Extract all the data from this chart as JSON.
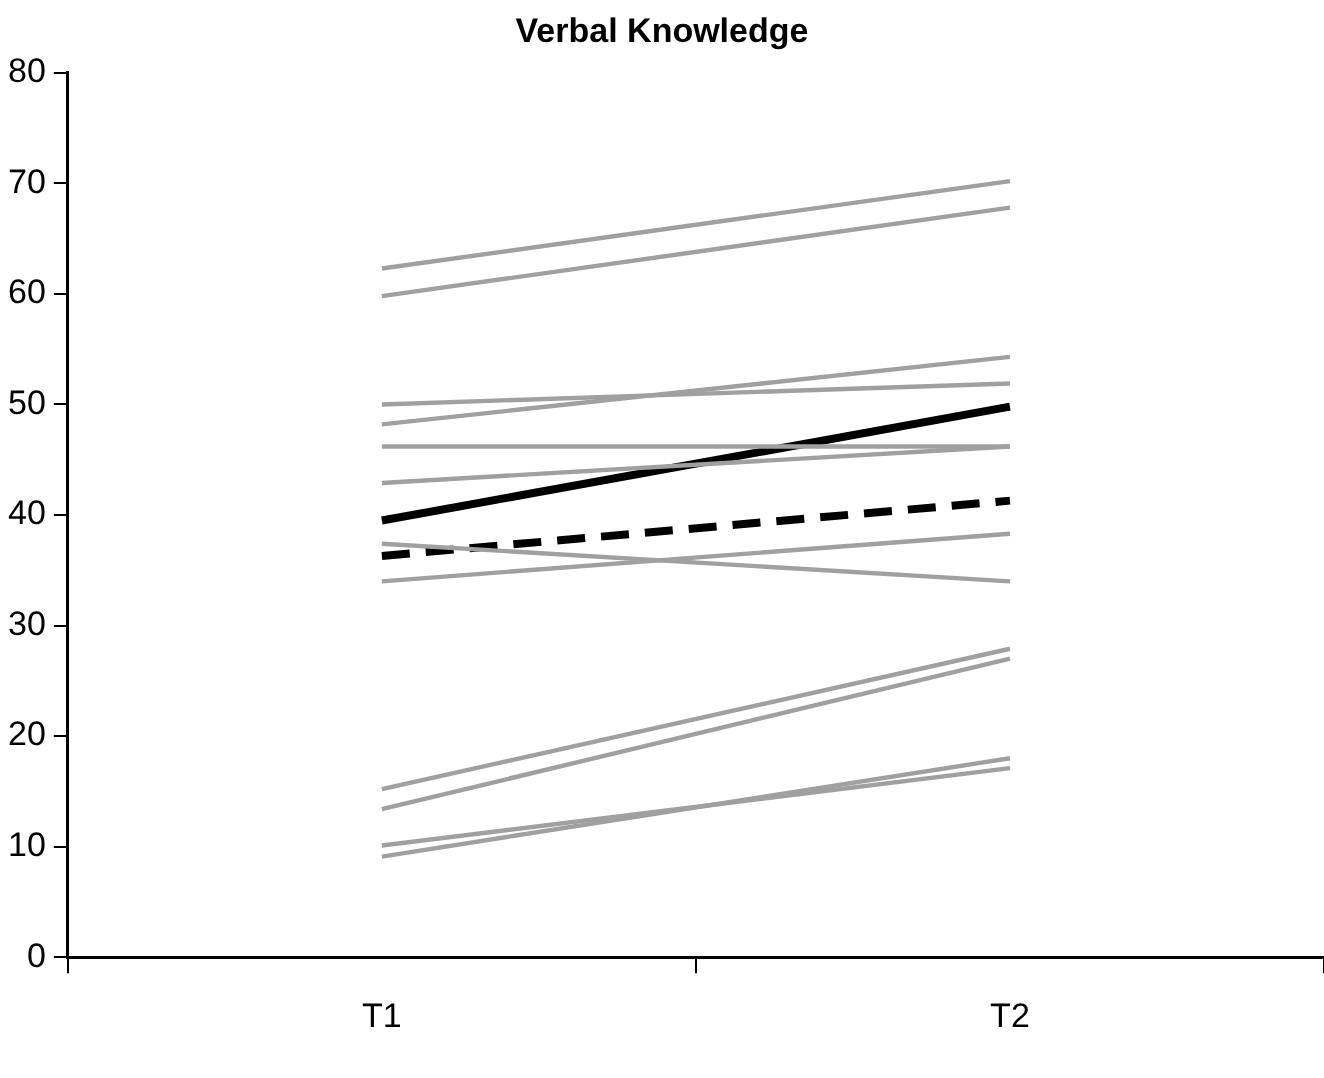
{
  "chart_data": {
    "type": "line",
    "title": "Verbal Knowledge",
    "categories": [
      "T1",
      "T2"
    ],
    "ylim": [
      0,
      80
    ],
    "yticks": [
      0,
      10,
      20,
      30,
      40,
      50,
      60,
      70,
      80
    ],
    "grid": false,
    "legend": false,
    "marker": "none",
    "series": [
      {
        "color": "#a0a0a0",
        "values": [
          62.3,
          70.2
        ]
      },
      {
        "color": "#a0a0a0",
        "values": [
          59.8,
          67.8
        ]
      },
      {
        "color": "#a0a0a0",
        "values": [
          50.0,
          51.9
        ]
      },
      {
        "color": "#a0a0a0",
        "values": [
          48.2,
          54.3
        ]
      },
      {
        "color": "#a0a0a0",
        "values": [
          46.2,
          46.2
        ]
      },
      {
        "color": "#a0a0a0",
        "values": [
          42.9,
          46.2
        ]
      },
      {
        "color": "#a0a0a0",
        "values": [
          37.4,
          34.0
        ]
      },
      {
        "color": "#a0a0a0",
        "values": [
          34.0,
          38.3
        ]
      },
      {
        "color": "#a0a0a0",
        "values": [
          15.2,
          27.9
        ]
      },
      {
        "color": "#a0a0a0",
        "values": [
          13.4,
          27.0
        ]
      },
      {
        "color": "#a0a0a0",
        "values": [
          10.1,
          17.1
        ]
      },
      {
        "color": "#a0a0a0",
        "values": [
          9.1,
          18.0
        ]
      },
      {
        "color": "#000000",
        "values": [
          39.5,
          49.8
        ]
      },
      {
        "color": "#000000",
        "values": [
          36.3,
          41.3
        ],
        "line_style": "dashed"
      }
    ]
  }
}
